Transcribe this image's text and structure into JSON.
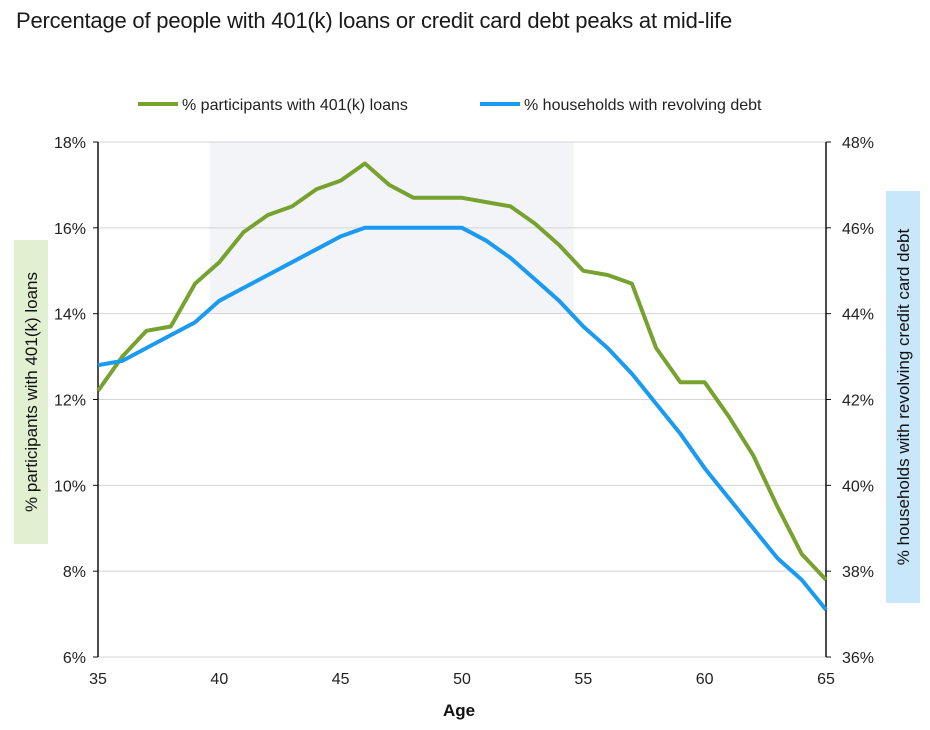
{
  "chart_data": {
    "type": "line",
    "title": "Percentage of people with 401(k) loans or credit card debt peaks at mid-life",
    "xlabel": "Age",
    "ylabel_left": "% participants with 401(k) loans",
    "ylabel_right": "% households with revolving credit card debt",
    "x": [
      35,
      36,
      37,
      38,
      39,
      40,
      41,
      42,
      43,
      44,
      45,
      46,
      47,
      48,
      49,
      50,
      51,
      52,
      53,
      54,
      55,
      56,
      57,
      58,
      59,
      60,
      61,
      62,
      63,
      64,
      65
    ],
    "xlim": [
      35,
      65
    ],
    "x_ticks": [
      35,
      40,
      45,
      50,
      55,
      60,
      65
    ],
    "x_tick_labels": [
      "35",
      "40",
      "45",
      "50",
      "55",
      "60",
      "65"
    ],
    "ylim_left": [
      6,
      18
    ],
    "y_ticks_left": [
      6,
      8,
      10,
      12,
      14,
      16,
      18
    ],
    "y_tick_labels_left": [
      "6%",
      "8%",
      "10%",
      "12%",
      "14%",
      "16%",
      "18%"
    ],
    "ylim_right": [
      36,
      48
    ],
    "y_ticks_right": [
      36,
      38,
      40,
      42,
      44,
      46,
      48
    ],
    "y_tick_labels_right": [
      "36%",
      "38%",
      "40%",
      "42%",
      "44%",
      "46%",
      "48%"
    ],
    "highlight_region": {
      "x_start": 39.6,
      "x_end": 54.6,
      "y_left_start": 14,
      "y_left_end": 18
    },
    "grid": true,
    "legend_position": "top-center",
    "series": [
      {
        "name": "% participants with 401(k) loans",
        "axis": "left",
        "color": "#77a22f",
        "values": [
          12.2,
          13.0,
          13.6,
          13.7,
          14.7,
          15.2,
          15.9,
          16.3,
          16.5,
          16.9,
          17.1,
          17.5,
          17.0,
          16.7,
          16.7,
          16.7,
          16.6,
          16.5,
          16.1,
          15.6,
          15.0,
          14.9,
          14.7,
          13.2,
          12.4,
          12.4,
          11.6,
          10.7,
          9.5,
          8.4,
          7.8
        ]
      },
      {
        "name": "% households with revolving debt",
        "axis": "right",
        "color": "#1a9af0",
        "values": [
          42.8,
          42.9,
          43.2,
          43.5,
          43.8,
          44.3,
          44.6,
          44.9,
          45.2,
          45.5,
          45.8,
          46.0,
          46.0,
          46.0,
          46.0,
          46.0,
          45.7,
          45.3,
          44.8,
          44.3,
          43.7,
          43.2,
          42.6,
          41.9,
          41.2,
          40.4,
          39.7,
          39.0,
          38.3,
          37.8,
          37.1
        ]
      }
    ],
    "label_colors": {
      "left_bg": "#e2f0d2",
      "right_bg": "#c9e7fb",
      "highlight": "#f2f4f7",
      "grid": "#d4d4d4"
    }
  }
}
